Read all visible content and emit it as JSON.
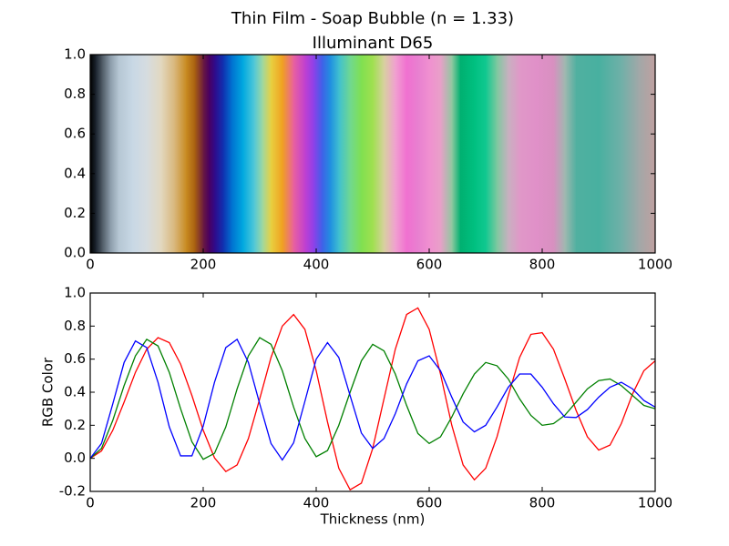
{
  "chart_data": [
    {
      "type": "color-strip",
      "title": "Thin Film - Soap Bubble (n = 1.33)",
      "subtitle": "Illuminant D65",
      "x": [
        0,
        10,
        20,
        35,
        50,
        75,
        100,
        125,
        150,
        170,
        185,
        200,
        210,
        220,
        235,
        250,
        270,
        290,
        305,
        320,
        340,
        360,
        380,
        395,
        410,
        425,
        440,
        460,
        480,
        500,
        520,
        540,
        560,
        580,
        600,
        620,
        640,
        655,
        680,
        700,
        720,
        740,
        760,
        790,
        820,
        840,
        860,
        900,
        940,
        970,
        1000
      ],
      "colors": [
        "#000000",
        "#1c2530",
        "#4a5560",
        "#8a9aa8",
        "#b5c6d3",
        "#c8d8e5",
        "#d6dce0",
        "#e2d8c0",
        "#d8b578",
        "#c88a20",
        "#a86010",
        "#6a1a40",
        "#4a0060",
        "#300a8a",
        "#1030b0",
        "#0070d0",
        "#00a8e0",
        "#50c8d8",
        "#a0d8a0",
        "#e8d040",
        "#f0a020",
        "#e860a0",
        "#c040d0",
        "#9040e8",
        "#4060e8",
        "#2090e0",
        "#40c0d0",
        "#70d890",
        "#80e050",
        "#a0e050",
        "#d8d0a0",
        "#f0a0d0",
        "#f070d0",
        "#e880d0",
        "#f090d0",
        "#e8a0c8",
        "#90c8a0",
        "#00b070",
        "#00c080",
        "#10c890",
        "#80c8a0",
        "#c8b0c0",
        "#e098c8",
        "#e090c8",
        "#d890c0",
        "#a0b8b0",
        "#50b0a0",
        "#48b0a0",
        "#70b0a8",
        "#a0a8a8",
        "#c0a0a0"
      ],
      "xlim": [
        0,
        1000
      ],
      "xticks": [
        0,
        200,
        400,
        600,
        800,
        1000
      ],
      "ylim": [
        0,
        1
      ],
      "yticks": [
        {
          "value": 0,
          "label": "0.0"
        },
        0.2,
        0.4,
        0.6,
        0.8,
        {
          "value": 1,
          "label": "1.0"
        }
      ]
    },
    {
      "type": "line",
      "x_label": "Thickness (nm)",
      "y_label": "RGB Color",
      "x": [
        0,
        20,
        40,
        60,
        80,
        100,
        120,
        140,
        160,
        180,
        200,
        220,
        240,
        260,
        280,
        300,
        320,
        340,
        360,
        380,
        400,
        420,
        440,
        460,
        480,
        500,
        520,
        540,
        560,
        580,
        600,
        620,
        640,
        660,
        680,
        700,
        720,
        740,
        760,
        780,
        800,
        820,
        840,
        860,
        880,
        900,
        920,
        940,
        960,
        980,
        1000
      ],
      "series": [
        {
          "color": "#ff0000",
          "values": [
            0,
            0.045,
            0.17,
            0.34,
            0.52,
            0.66,
            0.73,
            0.7,
            0.57,
            0.38,
            0.17,
            0.003,
            -0.08,
            -0.04,
            0.12,
            0.36,
            0.61,
            0.8,
            0.87,
            0.78,
            0.53,
            0.22,
            -0.06,
            -0.19,
            -0.15,
            0.06,
            0.36,
            0.66,
            0.87,
            0.91,
            0.78,
            0.51,
            0.2,
            -0.04,
            -0.13,
            -0.06,
            0.13,
            0.38,
            0.61,
            0.75,
            0.76,
            0.66,
            0.48,
            0.29,
            0.13,
            0.05,
            0.08,
            0.21,
            0.39,
            0.53,
            0.59
          ]
        },
        {
          "color": "#008000",
          "values": [
            0,
            0.06,
            0.23,
            0.44,
            0.62,
            0.72,
            0.68,
            0.52,
            0.3,
            0.1,
            -0.006,
            0.03,
            0.19,
            0.42,
            0.62,
            0.73,
            0.69,
            0.53,
            0.31,
            0.12,
            0.01,
            0.047,
            0.2,
            0.4,
            0.59,
            0.69,
            0.65,
            0.51,
            0.32,
            0.15,
            0.09,
            0.13,
            0.25,
            0.39,
            0.51,
            0.58,
            0.56,
            0.48,
            0.36,
            0.26,
            0.2,
            0.21,
            0.26,
            0.34,
            0.42,
            0.47,
            0.48,
            0.44,
            0.38,
            0.32,
            0.3
          ]
        },
        {
          "color": "#0000ff",
          "values": [
            0,
            0.09,
            0.33,
            0.58,
            0.71,
            0.67,
            0.46,
            0.19,
            0.015,
            0.015,
            0.195,
            0.46,
            0.67,
            0.72,
            0.58,
            0.33,
            0.09,
            -0.01,
            0.094,
            0.345,
            0.6,
            0.7,
            0.61,
            0.38,
            0.153,
            0.06,
            0.12,
            0.27,
            0.45,
            0.59,
            0.62,
            0.53,
            0.37,
            0.22,
            0.16,
            0.2,
            0.31,
            0.43,
            0.51,
            0.51,
            0.43,
            0.33,
            0.25,
            0.247,
            0.295,
            0.37,
            0.43,
            0.46,
            0.42,
            0.35,
            0.31
          ]
        }
      ],
      "xlim": [
        0,
        1000
      ],
      "xticks": [
        0,
        200,
        400,
        600,
        800,
        1000
      ],
      "ylim": [
        -0.2,
        1
      ],
      "yticks": [
        -0.2,
        {
          "value": 0,
          "label": "0.0"
        },
        0.2,
        0.4,
        0.6,
        0.8,
        {
          "value": 1,
          "label": "1.0"
        }
      ]
    }
  ]
}
